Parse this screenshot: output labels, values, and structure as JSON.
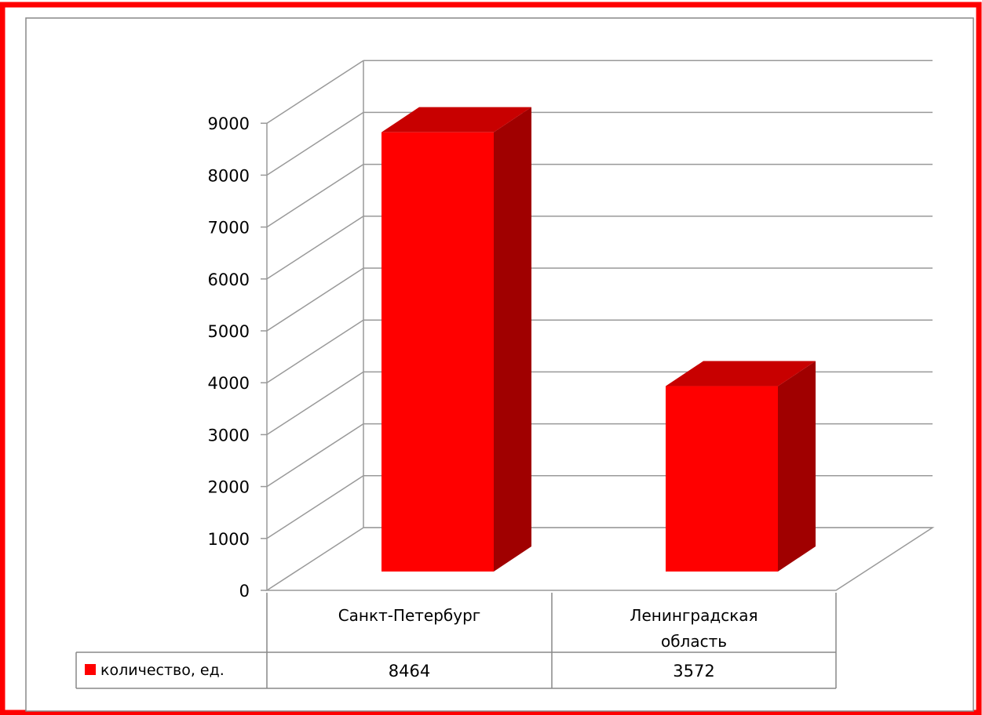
{
  "chart_data": {
    "type": "bar",
    "categories": [
      "Санкт-Петербург",
      "Ленинградская область"
    ],
    "category_lines": [
      [
        "Санкт-Петербург"
      ],
      [
        "Ленинградская",
        "область"
      ]
    ],
    "series": [
      {
        "name": "количество, ед.",
        "values": [
          8464,
          3572
        ]
      }
    ],
    "ylim": [
      0,
      9000
    ],
    "yticks": [
      0,
      1000,
      2000,
      3000,
      4000,
      5000,
      6000,
      7000,
      8000,
      9000
    ],
    "grid": true,
    "style": "3d-column",
    "data_table": true,
    "colors": {
      "bar_front": "#ff0000",
      "bar_side": "#a00000",
      "bar_top": "#c80000",
      "frame": "#ff0000",
      "grid": "#999999"
    }
  }
}
